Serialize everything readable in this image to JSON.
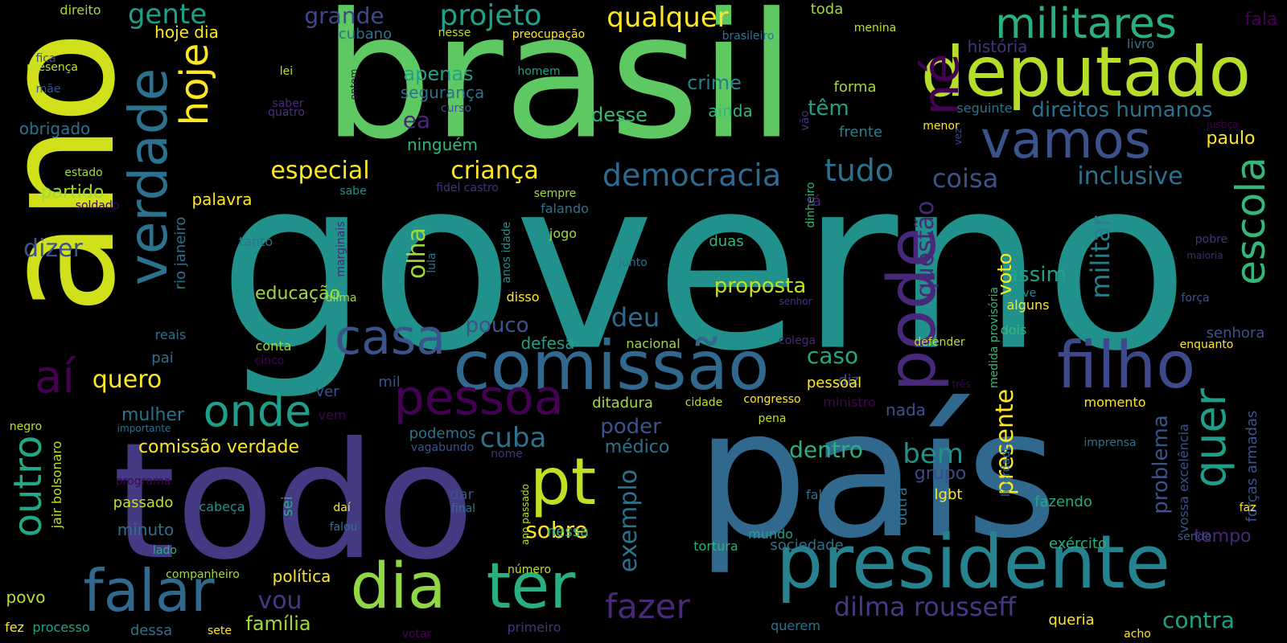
{
  "words": [
    "governo",
    "brasil",
    "ano",
    "país",
    "todo",
    "presidente",
    "comissão",
    "deputado",
    "vamos",
    "filho",
    "militares",
    "pode",
    "né",
    "verdade",
    "hoje",
    "escola",
    "quer",
    "dia",
    "ter",
    "falar",
    "pt",
    "pessoa",
    "casa",
    "aí",
    "onde",
    "outro",
    "fazer",
    "dilma rousseff",
    "projeto",
    "grande",
    "qualquer",
    "gente",
    "democracia",
    "tudo",
    "coisa",
    "inclusive",
    "direitos humanos",
    "especial",
    "criança",
    "crime",
    "têm",
    "apenas",
    "segurança",
    "ea",
    "ninguém",
    "desse",
    "ainda",
    "militar",
    "questão",
    "olha",
    "proposta",
    "educação",
    "assim",
    "deu",
    "pouco",
    "caso",
    "sobre",
    "exemplo",
    "presente",
    "bem",
    "cuba",
    "dentro",
    "quero",
    "comissão verdade",
    "mulher",
    "vou",
    "família",
    "contra",
    "tempo",
    "problema",
    "forças armadas",
    "paulo",
    "partido",
    "dizer",
    "palavra",
    "obrigado",
    "história",
    "seguinte",
    "frente",
    "forma",
    "livro",
    "fala",
    "toda",
    "menina",
    "brasileiro",
    "cubano",
    "nesse",
    "preocupação",
    "direito",
    "hoje dia",
    "fica",
    "presença",
    "lei",
    "mãe",
    "homem",
    "saber",
    "quatro",
    "curso",
    "ontem",
    "vão",
    "menor",
    "justiça",
    "vez",
    "estado",
    "sabe",
    "fidel castro",
    "sempre",
    "falando",
    "anos idade",
    "soldado",
    "rio janeiro",
    "marginais",
    "tanto",
    "jogo",
    "duas",
    "junto",
    "lula",
    "dinheiro",
    "tá",
    "pobre",
    "maioria",
    "deve",
    "força",
    "senhor",
    "alguns",
    "voto",
    "disso",
    "dilma",
    "reais",
    "defesa",
    "nacional",
    "colega",
    "defender",
    "dois",
    "senhora",
    "enquanto",
    "conta",
    "pai",
    "cinco",
    "mil",
    "diz",
    "pessoal",
    "três",
    "medida provisória",
    "ver",
    "nada",
    "ditadura",
    "cidade",
    "congresso",
    "ministro",
    "momento",
    "vem",
    "poder",
    "negro",
    "importante",
    "pena",
    "podemos",
    "vagabundo",
    "médico",
    "jair bolsonaro",
    "nome",
    "liberdade",
    "imprensa",
    "grupo",
    "vossa excelência",
    "programa",
    "lgbt",
    "passado",
    "cabeça",
    "sei",
    "dar",
    "falta",
    "outra",
    "fazendo",
    "faz",
    "minuto",
    "daí",
    "final",
    "falou",
    "ano passado",
    "nessa",
    "mundo",
    "sendo",
    "lado",
    "tortura",
    "sociedade",
    "exército",
    "companheiro",
    "política",
    "número",
    "povo",
    "fez",
    "processo",
    "dessa",
    "sete",
    "votar",
    "primeiro",
    "querem",
    "queria",
    "acho"
  ],
  "colors": {
    "background": "#000000",
    "palette": [
      "#440154",
      "#46327e",
      "#365c8d",
      "#277f8e",
      "#1fa187",
      "#4ac16d",
      "#a0da39",
      "#fde725"
    ]
  }
}
